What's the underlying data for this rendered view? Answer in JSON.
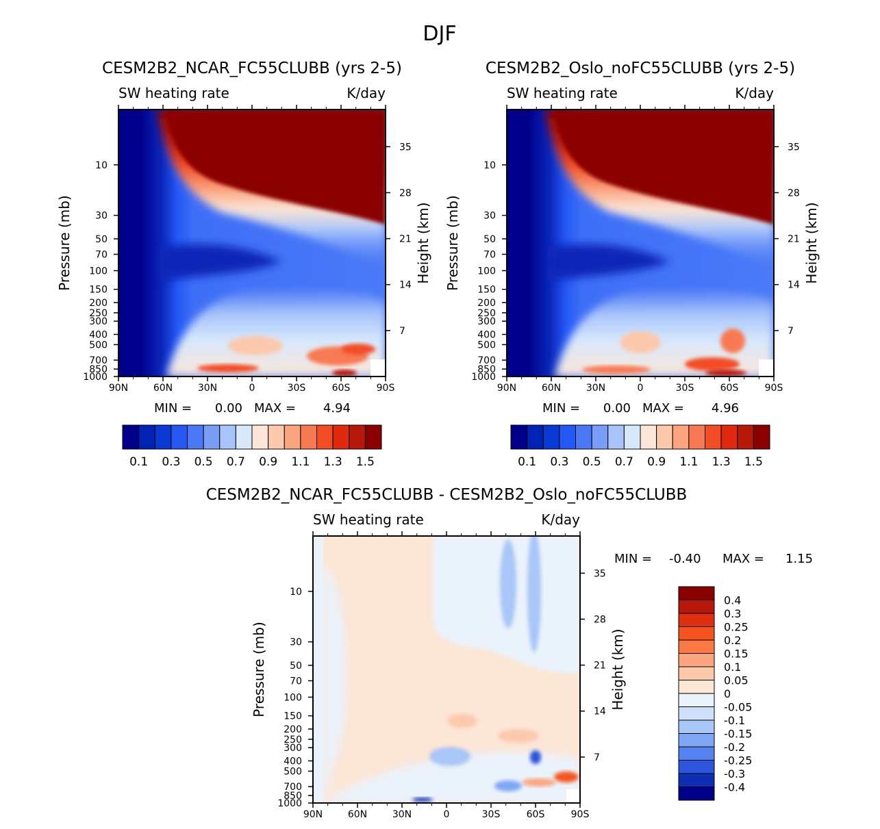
{
  "figure": {
    "title": "DJF"
  },
  "chart_data": [
    {
      "type": "heatmap",
      "id": "ncar",
      "title": "CESM2B2_NCAR_FC55CLUBB (yrs 2-5)",
      "variable": "SW heating rate",
      "units": "K/day",
      "xlabel": "",
      "ylabel": "Pressure (mb)",
      "ylabel_right": "Height (km)",
      "x_ticks": [
        "90N",
        "60N",
        "30N",
        "0",
        "30S",
        "60S",
        "90S"
      ],
      "y_ticks": [
        "10",
        "30",
        "50",
        "70",
        "100",
        "150",
        "200",
        "250",
        "300",
        "400",
        "500",
        "700",
        "850",
        "1000"
      ],
      "height_ticks": [
        "35",
        "28",
        "21",
        "14",
        "7"
      ],
      "stats": {
        "min_label": "MIN =",
        "min": "0.00",
        "max_label": "MAX =",
        "max": "4.94"
      },
      "colorbar": {
        "levels": [
          "0.1",
          "0.3",
          "0.5",
          "0.7",
          "0.9",
          "1.1",
          "1.3",
          "1.5"
        ],
        "colors": [
          "#00008b",
          "#0022b5",
          "#0a3ad6",
          "#2458f5",
          "#4a78f7",
          "#7a9ef8",
          "#a8c4fa",
          "#d8e8fb",
          "#fbe6d7",
          "#fcc9ac",
          "#fba47f",
          "#f87a52",
          "#f24d25",
          "#e02a10",
          "#b8180a",
          "#8b0000"
        ]
      }
    },
    {
      "type": "heatmap",
      "id": "oslo",
      "title": "CESM2B2_Oslo_noFC55CLUBB (yrs 2-5)",
      "variable": "SW heating rate",
      "units": "K/day",
      "xlabel": "",
      "ylabel": "Pressure (mb)",
      "ylabel_right": "Height (km)",
      "x_ticks": [
        "90N",
        "60N",
        "30N",
        "0",
        "30S",
        "60S",
        "90S"
      ],
      "y_ticks": [
        "10",
        "30",
        "50",
        "70",
        "100",
        "150",
        "200",
        "250",
        "300",
        "400",
        "500",
        "700",
        "850",
        "1000"
      ],
      "height_ticks": [
        "35",
        "28",
        "21",
        "14",
        "7"
      ],
      "stats": {
        "min_label": "MIN =",
        "min": "0.00",
        "max_label": "MAX =",
        "max": "4.96"
      },
      "colorbar": {
        "levels": [
          "0.1",
          "0.3",
          "0.5",
          "0.7",
          "0.9",
          "1.1",
          "1.3",
          "1.5"
        ],
        "colors": [
          "#00008b",
          "#0022b5",
          "#0a3ad6",
          "#2458f5",
          "#4a78f7",
          "#7a9ef8",
          "#a8c4fa",
          "#d8e8fb",
          "#fbe6d7",
          "#fcc9ac",
          "#fba47f",
          "#f87a52",
          "#f24d25",
          "#e02a10",
          "#b8180a",
          "#8b0000"
        ]
      }
    },
    {
      "type": "heatmap",
      "id": "diff",
      "title": "CESM2B2_NCAR_FC55CLUBB - CESM2B2_Oslo_noFC55CLUBB",
      "variable": "SW heating rate",
      "units": "K/day",
      "xlabel": "",
      "ylabel": "Pressure (mb)",
      "ylabel_right": "Height (km)",
      "x_ticks": [
        "90N",
        "60N",
        "30N",
        "0",
        "30S",
        "60S",
        "90S"
      ],
      "y_ticks": [
        "10",
        "30",
        "50",
        "70",
        "100",
        "150",
        "200",
        "250",
        "300",
        "400",
        "500",
        "700",
        "850",
        "1000"
      ],
      "height_ticks": [
        "35",
        "28",
        "21",
        "14",
        "7"
      ],
      "stats": {
        "min_label": "MIN =",
        "min": "-0.40",
        "max_label": "MAX =",
        "max": "1.15"
      },
      "colorbar": {
        "levels": [
          "0.4",
          "0.3",
          "0.25",
          "0.2",
          "0.15",
          "0.1",
          "0.05",
          "0",
          "-0.05",
          "-0.1",
          "-0.15",
          "-0.2",
          "-0.25",
          "-0.3",
          "-0.4"
        ],
        "colors": [
          "#8b0000",
          "#b8180a",
          "#e0300f",
          "#f6541f",
          "#fb7a46",
          "#fca57f",
          "#fdc9ab",
          "#fce6d6",
          "#eaf2fb",
          "#cfe1fa",
          "#a8c6f7",
          "#7ea6f4",
          "#5482f0",
          "#2a55dc",
          "#0d2eb5",
          "#00008b"
        ]
      }
    }
  ]
}
